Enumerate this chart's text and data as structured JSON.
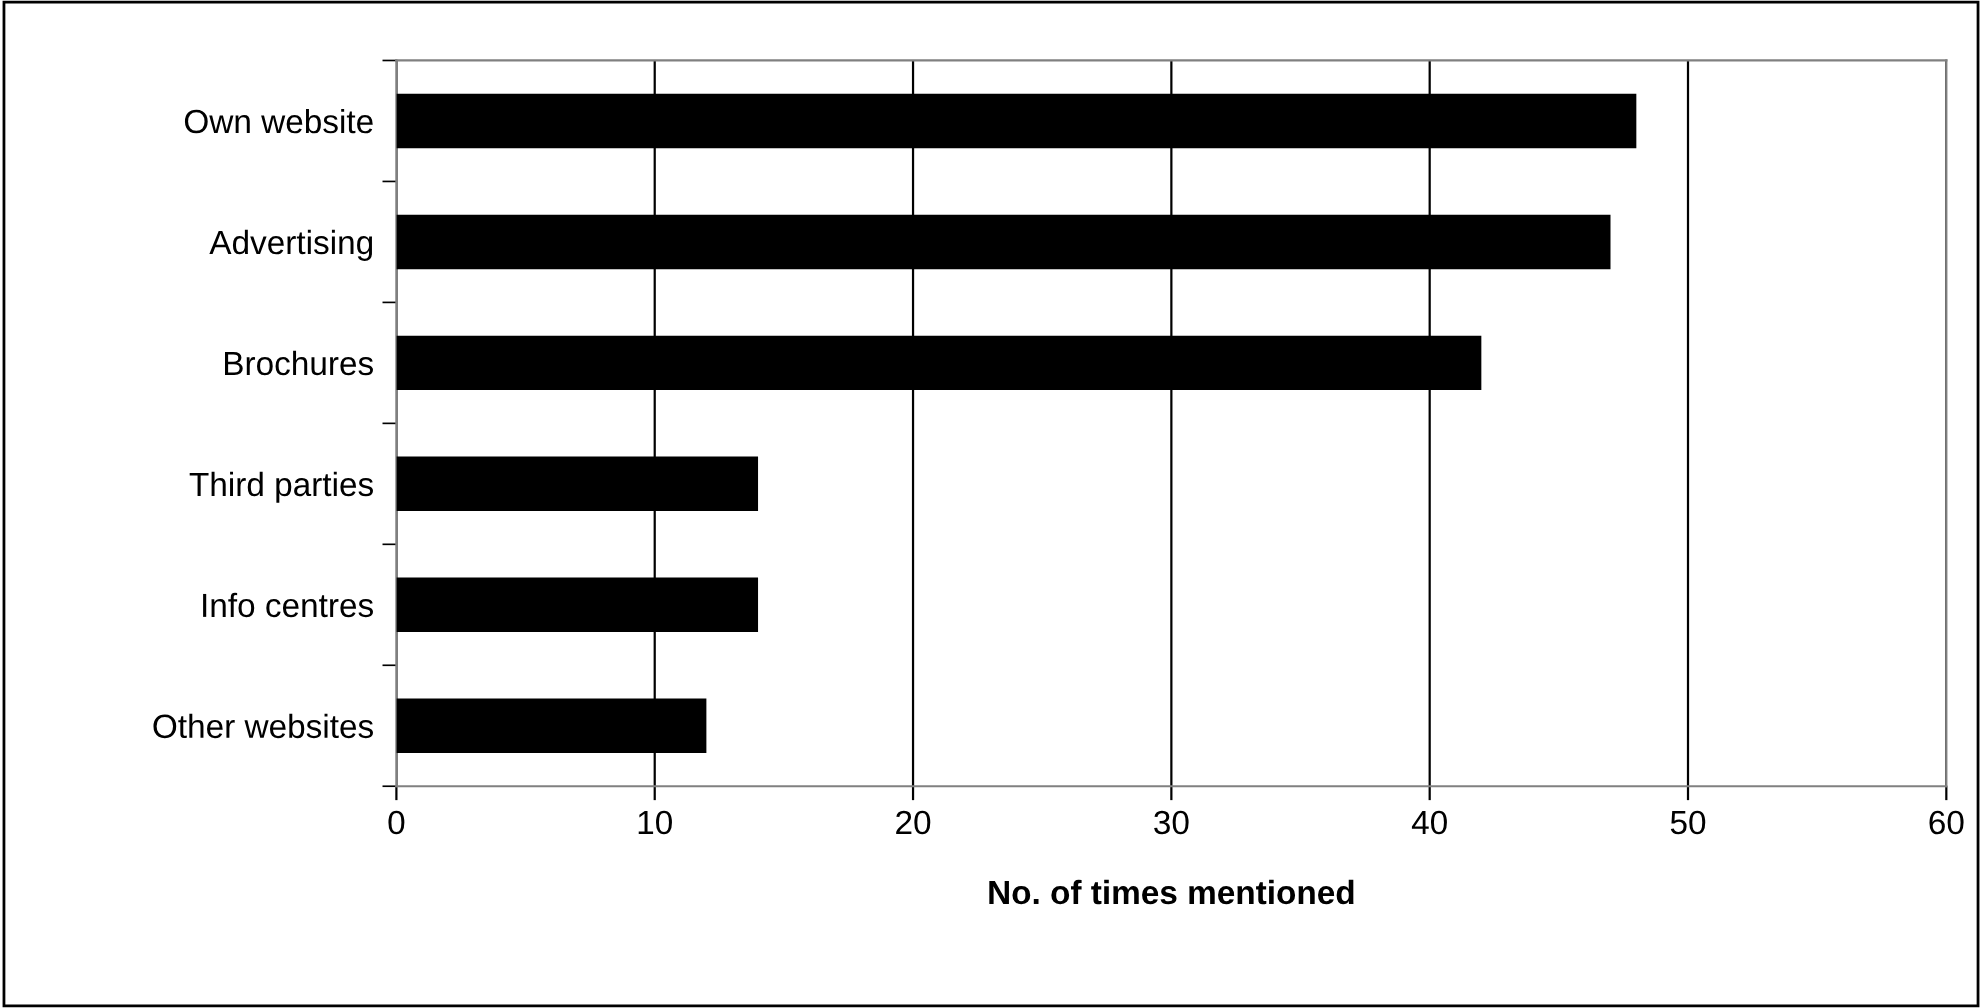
{
  "chart_data": {
    "type": "bar",
    "orientation": "horizontal",
    "xlabel": "No. of times mentioned",
    "categories": [
      "Own website",
      "Advertising",
      "Brochures",
      "Third parties",
      "Info centres",
      "Other websites"
    ],
    "values": [
      48,
      47,
      42,
      14,
      14,
      12
    ],
    "color": "#000000",
    "xlim": [
      0,
      60
    ],
    "xticks": [
      0,
      10,
      20,
      30,
      40,
      50,
      60
    ],
    "grid": "x",
    "legend": false
  }
}
